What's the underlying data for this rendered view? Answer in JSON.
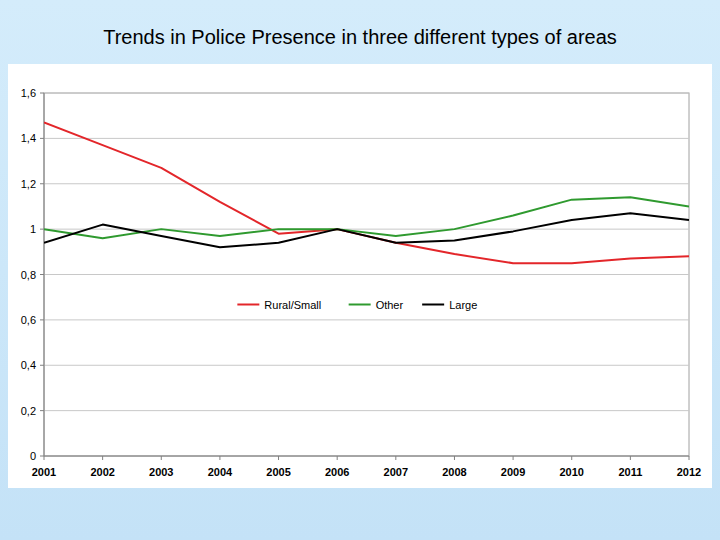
{
  "chart_data": {
    "type": "line",
    "title": "Trends in Police Presence in three different types of areas",
    "x": [
      2001,
      2002,
      2003,
      2004,
      2005,
      2006,
      2007,
      2008,
      2009,
      2010,
      2011,
      2012
    ],
    "series": [
      {
        "name": "Rural/Small",
        "color": "#e3262a",
        "values": [
          1.47,
          1.37,
          1.27,
          1.12,
          0.98,
          1.0,
          0.94,
          0.89,
          0.85,
          0.85,
          0.87,
          0.88
        ]
      },
      {
        "name": "Other",
        "color": "#2f9a2f",
        "values": [
          1.0,
          0.96,
          1.0,
          0.97,
          1.0,
          1.0,
          0.97,
          1.0,
          1.06,
          1.13,
          1.14,
          1.1
        ]
      },
      {
        "name": "Large",
        "color": "#000000",
        "values": [
          0.94,
          1.02,
          0.97,
          0.92,
          0.94,
          1.0,
          0.94,
          0.95,
          0.99,
          1.04,
          1.07,
          1.04
        ]
      }
    ],
    "xlim": [
      2001,
      2012
    ],
    "xticks": [
      2001,
      2002,
      2003,
      2004,
      2005,
      2006,
      2007,
      2008,
      2009,
      2010,
      2011,
      2012
    ],
    "ylim": [
      0,
      1.6
    ],
    "yticks": [
      0,
      {
        "value": 0.2,
        "label": "0,2"
      },
      {
        "value": 0.4,
        "label": "0,4"
      },
      {
        "value": 0.6,
        "label": "0,6"
      },
      {
        "value": 0.8,
        "label": "0,8"
      },
      1,
      {
        "value": 1.2,
        "label": "1,2"
      },
      {
        "value": 1.4,
        "label": "1,4"
      },
      {
        "value": 1.6,
        "label": "1,6"
      }
    ],
    "grid": true,
    "legend": "center"
  }
}
